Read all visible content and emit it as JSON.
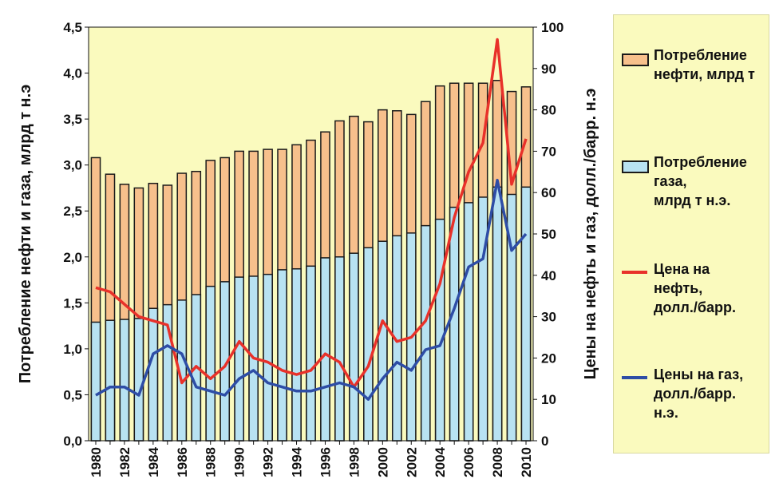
{
  "chart_data": {
    "type": "bar+line",
    "title": "",
    "categories": [
      "1980",
      "1981",
      "1982",
      "1983",
      "1984",
      "1985",
      "1986",
      "1987",
      "1988",
      "1989",
      "1990",
      "1991",
      "1992",
      "1993",
      "1994",
      "1995",
      "1996",
      "1997",
      "1998",
      "1999",
      "2000",
      "2001",
      "2002",
      "2003",
      "2004",
      "2005",
      "2006",
      "2007",
      "2008",
      "2009",
      "2010"
    ],
    "x_tick_labels": [
      "1980",
      "1982",
      "1984",
      "1986",
      "1988",
      "1990",
      "1992",
      "1994",
      "1996",
      "1998",
      "2000",
      "2002",
      "2004",
      "2006",
      "2008",
      "2010"
    ],
    "left_axis": {
      "label": "Потребление нефти и газа, млрд т н.э",
      "ylim": [
        0,
        4.5
      ],
      "ticks": [
        "0,0",
        "0,5",
        "1,0",
        "1,5",
        "2,0",
        "2,5",
        "3,0",
        "3,5",
        "4,0",
        "4,5"
      ]
    },
    "right_axis": {
      "label": "Цены на нефть и газ, долл./барр. н.э",
      "ylim": [
        0,
        100
      ],
      "ticks": [
        "0",
        "10",
        "20",
        "30",
        "40",
        "50",
        "60",
        "70",
        "80",
        "90",
        "100"
      ]
    },
    "series": [
      {
        "name": "Потребление нефти, млрд т",
        "kind": "bar",
        "axis": "left",
        "color": "#f7c08c",
        "values": [
          3.08,
          2.9,
          2.79,
          2.75,
          2.8,
          2.78,
          2.91,
          2.93,
          3.05,
          3.08,
          3.15,
          3.15,
          3.17,
          3.17,
          3.22,
          3.27,
          3.36,
          3.48,
          3.53,
          3.47,
          3.6,
          3.59,
          3.55,
          3.69,
          3.86,
          3.89,
          3.89,
          3.89,
          3.92,
          3.8,
          3.85
        ]
      },
      {
        "name": "Потребление газа, млрд т н.э.",
        "kind": "bar",
        "axis": "left",
        "color": "#b8e2f2",
        "values": [
          1.29,
          1.31,
          1.32,
          1.33,
          1.44,
          1.48,
          1.53,
          1.59,
          1.68,
          1.73,
          1.78,
          1.79,
          1.81,
          1.86,
          1.87,
          1.9,
          1.99,
          2.0,
          2.04,
          2.1,
          2.17,
          2.23,
          2.26,
          2.34,
          2.41,
          2.54,
          2.59,
          2.65,
          2.76,
          2.68,
          2.76
        ]
      },
      {
        "name": "Цена на нефть, долл./барр.",
        "kind": "line",
        "axis": "right",
        "color": "#e8312a",
        "values": [
          37,
          36,
          33,
          30,
          29,
          28,
          14,
          18,
          15,
          18,
          24,
          20,
          19,
          17,
          16,
          17,
          21,
          19,
          13,
          18,
          29,
          24,
          25,
          29,
          38,
          54,
          65,
          72,
          97,
          62,
          73
        ]
      },
      {
        "name": "Цены на газ, долл./барр. н.э.",
        "kind": "line",
        "axis": "right",
        "color": "#2e4da6",
        "values": [
          11,
          13,
          13,
          11,
          21,
          23,
          21,
          13,
          12,
          11,
          15,
          17,
          14,
          13,
          12,
          12,
          13,
          14,
          13,
          10,
          15,
          19,
          17,
          22,
          23,
          32,
          42,
          44,
          63,
          46,
          50
        ]
      }
    ]
  },
  "legend": {
    "items": [
      {
        "label": "Потребление\nнефти, млрд т",
        "swatch": "bar",
        "color": "#f7c08c"
      },
      {
        "label": "Потребление\nгаза,\nмлрд т н.э.",
        "swatch": "bar",
        "color": "#b8e2f2"
      },
      {
        "label": "Цена на\nнефть,\nдолл./барр.",
        "swatch": "line",
        "color": "#e8312a"
      },
      {
        "label": "Цены на газ,\nдолл./барр.\nн.э.",
        "swatch": "line",
        "color": "#2e4da6"
      }
    ]
  },
  "colors": {
    "plot_background": "#fafabe",
    "bar_outline": "#1a1a1a",
    "axis": "#111111"
  }
}
